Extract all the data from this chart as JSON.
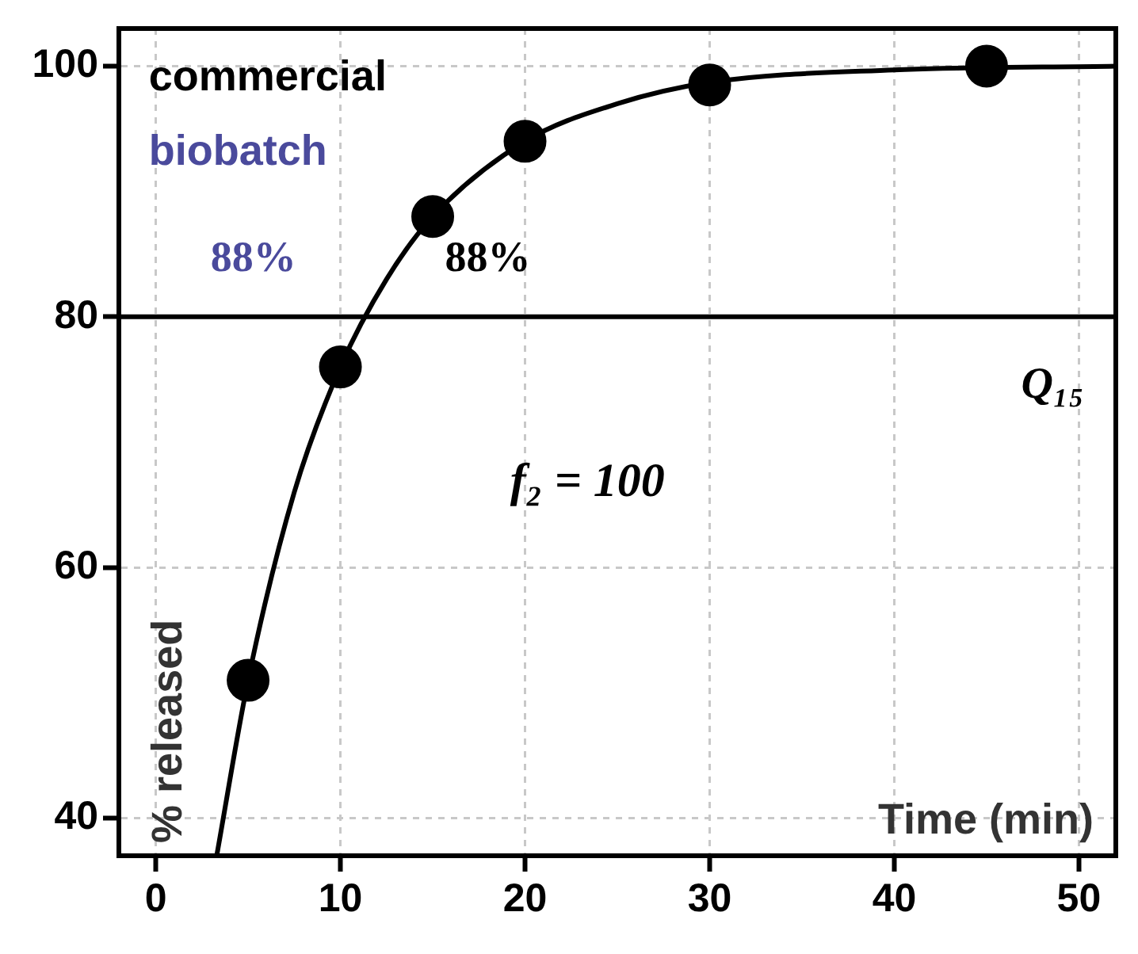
{
  "chart_data": {
    "type": "scatter",
    "xlabel": "Time (min)",
    "ylabel": "% released",
    "series": [
      {
        "type": "line",
        "marker": "none",
        "color": "#000000",
        "x": [
          3.3,
          5,
          7.5,
          10,
          12.5,
          15,
          20,
          25,
          30,
          40,
          52
        ],
        "values": [
          37,
          51,
          66,
          76,
          83,
          88,
          94,
          97,
          98.7,
          99.7,
          100
        ]
      },
      {
        "color": "#000000",
        "x": [
          5,
          10,
          15,
          20,
          30,
          45
        ],
        "values": [
          51,
          76,
          88,
          94,
          98.5,
          100
        ]
      }
    ],
    "xlim": [
      -2,
      52
    ],
    "xticks": [
      0,
      10,
      20,
      30,
      40,
      50
    ],
    "ylim": [
      37,
      103
    ],
    "yticks": [
      40,
      60,
      80,
      100
    ],
    "grid": true,
    "marker": "circle",
    "legend": false,
    "ref_lines": [
      {
        "axis": "y",
        "value": 80,
        "label": "Q₁₅",
        "color": "#000000"
      }
    ],
    "annotations": [
      "commercial",
      "biobatch",
      "88%",
      "88%",
      "f₂ = 100"
    ]
  }
}
